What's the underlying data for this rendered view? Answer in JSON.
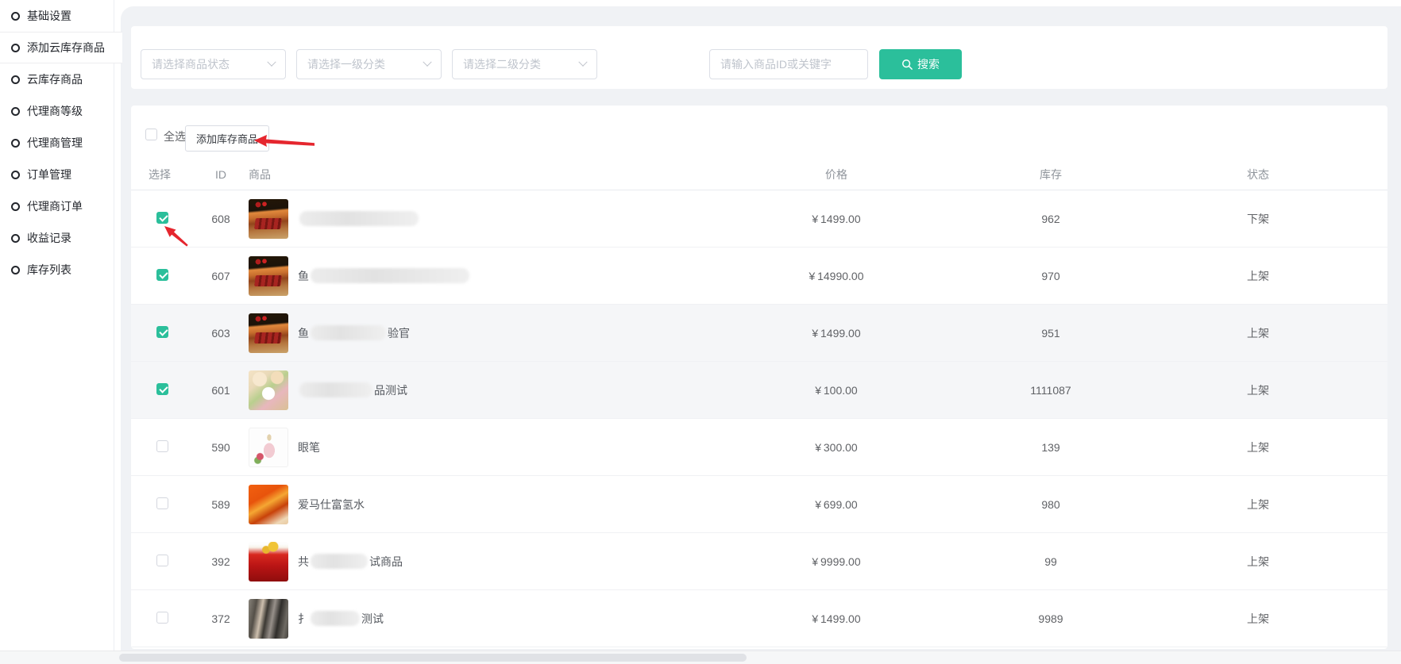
{
  "theme": {
    "accent_color": "#2bbf9b",
    "page_background": "#f0f2f5",
    "annotation_arrow_color": "#e5262e",
    "status_text_color": "#606266"
  },
  "sidebar": {
    "items": [
      {
        "label": "基础设置",
        "active": false
      },
      {
        "label": "添加云库存商品",
        "active": true
      },
      {
        "label": "云库存商品",
        "active": false
      },
      {
        "label": "代理商等级",
        "active": false
      },
      {
        "label": "代理商管理",
        "active": false
      },
      {
        "label": "订单管理",
        "active": false
      },
      {
        "label": "代理商订单",
        "active": false
      },
      {
        "label": "收益记录",
        "active": false
      },
      {
        "label": "库存列表",
        "active": false
      }
    ],
    "item_icon": "circle-outline-icon"
  },
  "filters": {
    "selects": [
      {
        "placeholder": "请选择商品状态",
        "icon": "chevron-down-icon"
      },
      {
        "placeholder": "请选择一级分类",
        "icon": "chevron-down-icon"
      },
      {
        "placeholder": "请选择二级分类",
        "icon": "chevron-down-icon"
      }
    ],
    "keyword": {
      "placeholder": "请输入商品ID或关键字",
      "value": ""
    },
    "search_button": {
      "label": "搜索",
      "icon": "search-icon"
    }
  },
  "toolbar": {
    "select_all_label": "全选",
    "select_all_checked": false,
    "add_button_label": "添加库存商品"
  },
  "annotations": [
    {
      "name": "arrow-to-add-button",
      "shape": "red-arrow-left"
    },
    {
      "name": "arrow-to-first-checkbox",
      "shape": "red-arrow-up-left"
    }
  ],
  "table": {
    "columns": [
      "选择",
      "ID",
      "商品",
      "价格",
      "库存",
      "状态"
    ],
    "currency": "¥",
    "rows": [
      {
        "id": "608",
        "checked": true,
        "shaded": false,
        "image": "giftbox",
        "name_prefix": "",
        "blur_width": 150,
        "name_suffix": "",
        "price": "1499.00",
        "stock": "962",
        "status": "下架"
      },
      {
        "id": "607",
        "checked": true,
        "shaded": false,
        "image": "giftbox",
        "name_prefix": "鱼",
        "blur_width": 200,
        "name_suffix": "",
        "price": "14990.00",
        "stock": "970",
        "status": "上架"
      },
      {
        "id": "603",
        "checked": true,
        "shaded": true,
        "image": "giftbox",
        "name_prefix": "鱼",
        "blur_width": 95,
        "name_suffix": "验官",
        "price": "1499.00",
        "stock": "951",
        "status": "上架"
      },
      {
        "id": "601",
        "checked": true,
        "shaded": true,
        "image": "eggs",
        "name_prefix": "",
        "blur_width": 92,
        "name_suffix": "品测试",
        "price": "100.00",
        "stock": "1111087",
        "status": "上架"
      },
      {
        "id": "590",
        "checked": false,
        "shaded": false,
        "image": "perfume",
        "name_prefix": "眼笔",
        "blur_width": 0,
        "name_suffix": "",
        "price": "300.00",
        "stock": "139",
        "status": "上架"
      },
      {
        "id": "589",
        "checked": false,
        "shaded": false,
        "image": "hermes",
        "name_prefix": "爱马仕富氢水",
        "blur_width": 0,
        "name_suffix": "",
        "price": "699.00",
        "stock": "980",
        "status": "上架"
      },
      {
        "id": "392",
        "checked": false,
        "shaded": false,
        "image": "redgift",
        "name_prefix": "共",
        "blur_width": 72,
        "name_suffix": "试商品",
        "price": "9999.00",
        "stock": "99",
        "status": "上架"
      },
      {
        "id": "372",
        "checked": false,
        "shaded": false,
        "image": "clothes",
        "name_prefix": "扌",
        "blur_width": 62,
        "name_suffix": "测试",
        "price": "1499.00",
        "stock": "9989",
        "status": "上架"
      }
    ]
  }
}
